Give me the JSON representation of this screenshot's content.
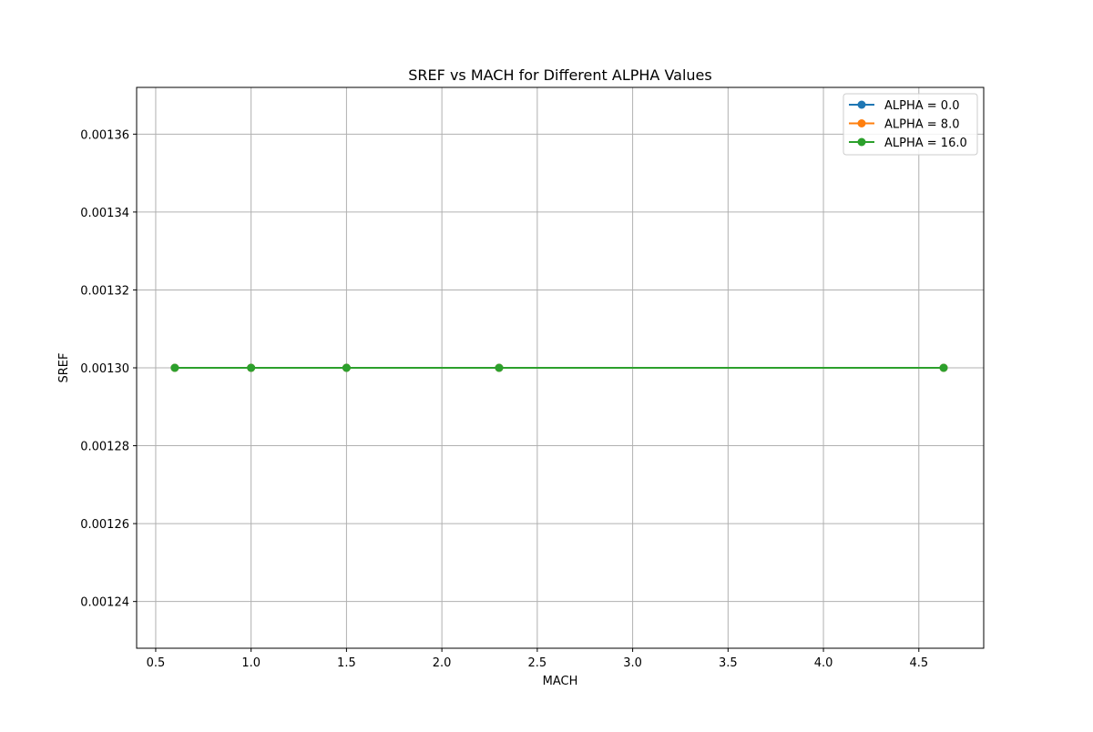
{
  "chart_data": {
    "type": "line",
    "title": "SREF vs MACH for Different ALPHA Values",
    "xlabel": "MACH",
    "ylabel": "SREF",
    "xlim": [
      0.4,
      4.84
    ],
    "ylim": [
      0.001228,
      0.001372
    ],
    "xticks": [
      0.5,
      1.0,
      1.5,
      2.0,
      2.5,
      3.0,
      3.5,
      4.0,
      4.5
    ],
    "xtick_labels": [
      "0.5",
      "1.0",
      "1.5",
      "2.0",
      "2.5",
      "3.0",
      "3.5",
      "4.0",
      "4.5"
    ],
    "yticks": [
      0.00124,
      0.00126,
      0.00128,
      0.0013,
      0.00132,
      0.00134,
      0.00136
    ],
    "ytick_labels": [
      "0.00124",
      "0.00126",
      "0.00128",
      "0.00130",
      "0.00132",
      "0.00134",
      "0.00136"
    ],
    "grid": true,
    "legend_position": "top-right",
    "x": [
      0.6,
      1.0,
      1.5,
      2.3,
      4.63
    ],
    "series": [
      {
        "name": "ALPHA = 0.0",
        "color": "#1f77b4",
        "values": [
          0.0013,
          0.0013,
          0.0013,
          0.0013,
          0.0013
        ]
      },
      {
        "name": "ALPHA = 8.0",
        "color": "#ff7f0e",
        "values": [
          0.0013,
          0.0013,
          0.0013,
          0.0013,
          0.0013
        ]
      },
      {
        "name": "ALPHA = 16.0",
        "color": "#2ca02c",
        "values": [
          0.0013,
          0.0013,
          0.0013,
          0.0013,
          0.0013
        ]
      }
    ]
  }
}
